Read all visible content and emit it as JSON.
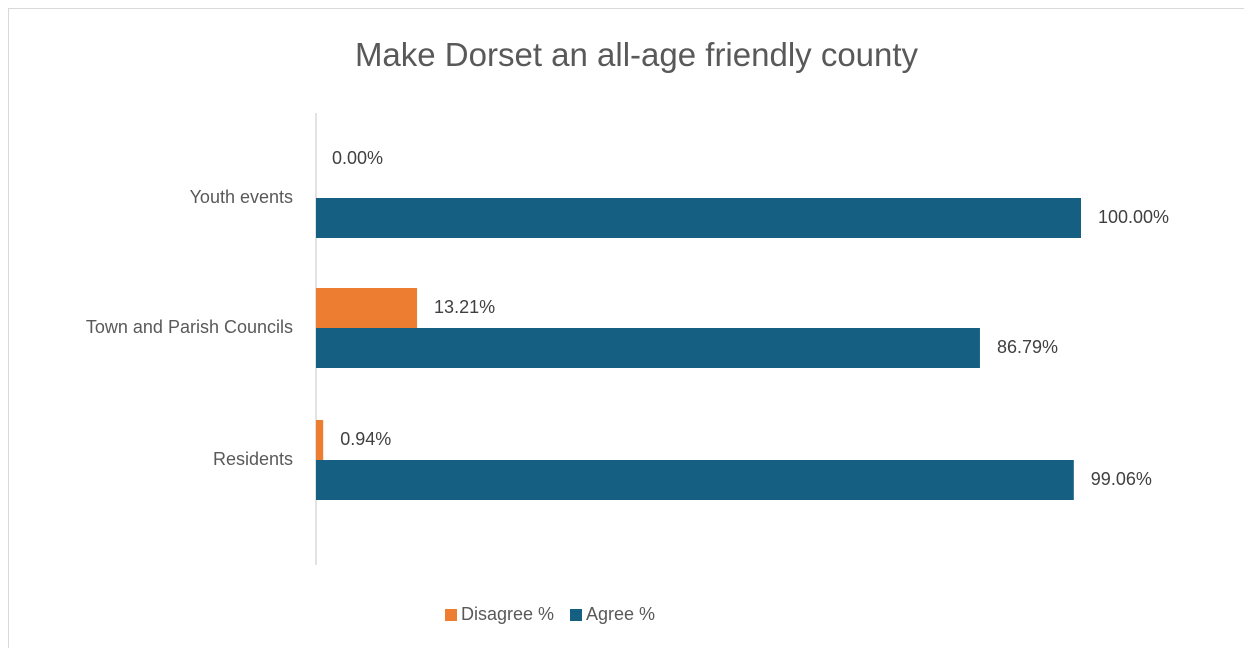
{
  "chart_data": {
    "type": "bar",
    "orientation": "horizontal",
    "title": "Make Dorset an all-age friendly county",
    "categories": [
      "Youth events",
      "Town and Parish Councils",
      "Residents"
    ],
    "series": [
      {
        "name": "Disagree %",
        "color": "#ed7d31",
        "values": [
          0.0,
          13.21,
          0.94
        ],
        "labels": [
          "0.00%",
          "13.21%",
          "0.94%"
        ]
      },
      {
        "name": "Agree %",
        "color": "#156082",
        "values": [
          100.0,
          86.79,
          99.06
        ],
        "labels": [
          "100.00%",
          "86.79%",
          "99.06%"
        ]
      }
    ],
    "xlim": [
      0,
      100
    ],
    "grid": false,
    "legend": "bottom"
  }
}
